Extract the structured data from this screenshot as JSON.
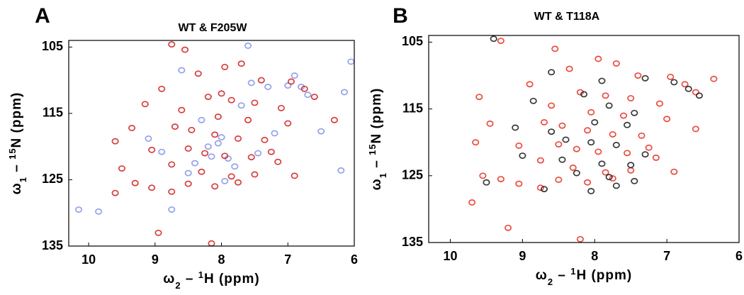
{
  "chart_data": [
    {
      "type": "scatter",
      "panel": "A",
      "title": "WT & F205W",
      "xlabel": [
        "ω",
        "2",
        " – ",
        "1",
        "H (ppm)"
      ],
      "ylabel": [
        "ω",
        "1",
        " – ",
        "15",
        "N (ppm)"
      ],
      "xlim": [
        10.3,
        6
      ],
      "ylim": [
        104,
        135
      ],
      "xticks": [
        10,
        9,
        8,
        7,
        6
      ],
      "yticks": [
        105,
        115,
        125,
        135
      ],
      "series": [
        {
          "color": "#5a6ee0",
          "x": [
            10.15,
            9.85,
            8.75,
            7.55,
            8.2,
            8.05,
            6.8,
            6.15,
            6.05,
            7.6,
            6.5,
            8.4,
            7.9,
            6.2,
            8.6,
            7.3,
            8.9,
            7.7,
            8.3,
            7.0,
            8.0,
            7.45,
            6.7,
            8.5,
            7.8,
            8.15,
            7.2,
            9.1,
            6.9,
            7.95
          ],
          "y": [
            129.5,
            129.8,
            129.5,
            110.4,
            120.0,
            119.5,
            111.0,
            111.8,
            107.2,
            104.8,
            117.7,
            122.5,
            121.8,
            123.6,
            108.5,
            111.0,
            120.8,
            113.8,
            116.0,
            110.8,
            118.6,
            121.0,
            112.2,
            124.0,
            123.0,
            121.5,
            118.0,
            118.8,
            109.3,
            125.2
          ]
        },
        {
          "color": "#d42828",
          "x": [
            8.75,
            8.55,
            7.95,
            7.7,
            8.35,
            7.4,
            6.95,
            6.75,
            6.6,
            8.9,
            8.2,
            7.85,
            7.5,
            7.1,
            9.15,
            8.6,
            8.05,
            7.6,
            7.0,
            9.35,
            8.45,
            8.1,
            7.75,
            7.35,
            9.6,
            9.05,
            8.5,
            8.25,
            7.95,
            7.55,
            7.15,
            9.5,
            8.75,
            8.3,
            7.85,
            7.5,
            6.9,
            9.3,
            9.05,
            8.75,
            8.5,
            8.1,
            7.75,
            9.6,
            8.95,
            8.15,
            8.7,
            7.25,
            8.0,
            6.3
          ],
          "y": [
            104.6,
            105.4,
            108.0,
            107.5,
            109.0,
            110.0,
            110.2,
            111.3,
            112.5,
            111.3,
            112.5,
            113.0,
            113.4,
            114.2,
            113.6,
            114.5,
            115.5,
            116.0,
            116.5,
            117.2,
            117.5,
            118.2,
            118.8,
            119.0,
            119.2,
            120.5,
            120.3,
            121.0,
            121.4,
            121.6,
            122.3,
            123.3,
            122.7,
            123.8,
            124.5,
            124.2,
            124.4,
            125.5,
            126.2,
            126.8,
            125.6,
            126.0,
            125.4,
            127.0,
            133.0,
            134.6,
            117.0,
            120.8,
            112.0,
            116.0
          ]
        }
      ]
    },
    {
      "type": "scatter",
      "panel": "B",
      "title": "WT & T118A",
      "xlabel": [
        "ω",
        "2",
        " – ",
        "1",
        "H (ppm)"
      ],
      "ylabel": [
        "ω",
        "1",
        " – ",
        "15",
        "N (ppm)"
      ],
      "xlim": [
        10.3,
        6
      ],
      "ylim": [
        104,
        135
      ],
      "xticks": [
        10,
        9,
        8,
        7,
        6
      ],
      "yticks": [
        105,
        115,
        125,
        135
      ],
      "series": [
        {
          "color": "#e8382c",
          "x": [
            9.3,
            8.55,
            7.95,
            7.7,
            8.35,
            7.4,
            6.95,
            6.75,
            6.6,
            6.35,
            8.9,
            8.2,
            7.85,
            7.5,
            7.1,
            9.6,
            8.6,
            8.05,
            7.6,
            7.0,
            9.45,
            8.45,
            8.1,
            7.75,
            7.35,
            9.65,
            9.05,
            8.5,
            8.25,
            7.95,
            7.55,
            7.15,
            9.55,
            8.75,
            8.3,
            7.85,
            7.5,
            6.9,
            9.3,
            9.05,
            8.75,
            8.5,
            8.1,
            7.75,
            9.7,
            9.2,
            8.2,
            8.7,
            7.25,
            6.6
          ],
          "y": [
            104.8,
            106.0,
            107.5,
            108.2,
            109.0,
            110.0,
            110.2,
            111.3,
            112.5,
            110.5,
            111.3,
            112.5,
            113.0,
            113.4,
            114.2,
            113.2,
            114.5,
            115.5,
            116.0,
            116.5,
            117.2,
            117.5,
            118.2,
            118.8,
            119.0,
            120.0,
            120.5,
            120.3,
            121.0,
            121.4,
            121.6,
            122.3,
            125.0,
            122.7,
            123.8,
            124.5,
            124.2,
            124.4,
            125.5,
            126.2,
            126.8,
            125.6,
            126.0,
            125.4,
            129.0,
            132.8,
            134.5,
            117.0,
            120.8,
            118.0
          ]
        },
        {
          "color": "#222222",
          "x": [
            9.4,
            8.6,
            7.9,
            7.3,
            6.9,
            6.7,
            6.55,
            8.85,
            8.15,
            7.8,
            7.45,
            9.1,
            8.0,
            7.55,
            8.4,
            8.05,
            7.7,
            9.0,
            8.45,
            7.9,
            7.5,
            9.5,
            8.25,
            7.8,
            7.45,
            8.7,
            8.05,
            7.7,
            8.6,
            7.3
          ],
          "y": [
            104.5,
            109.5,
            110.8,
            110.4,
            111.0,
            112.0,
            113.0,
            113.8,
            112.8,
            114.5,
            115.6,
            117.8,
            117.0,
            117.4,
            119.6,
            120.0,
            120.4,
            122.0,
            122.6,
            123.2,
            123.4,
            126.0,
            124.6,
            125.2,
            125.8,
            127.0,
            127.3,
            126.5,
            118.4,
            121.8
          ]
        }
      ]
    }
  ]
}
